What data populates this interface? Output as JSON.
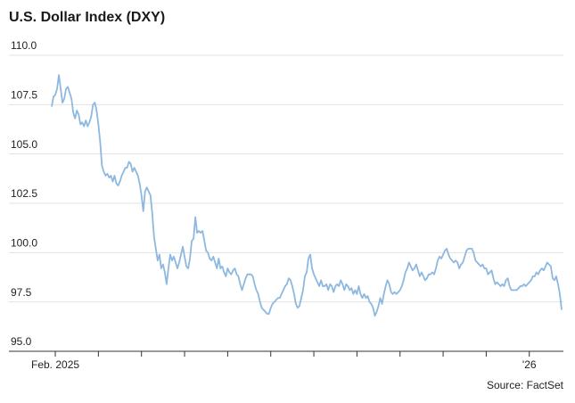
{
  "chart_data": {
    "type": "line",
    "title": "U.S. Dollar Index (DXY)",
    "source": "Source: FactSet",
    "categories": [
      null,
      null,
      "Feb. 2025",
      null,
      null,
      null,
      null,
      null,
      null,
      null,
      null,
      null,
      null,
      null,
      null,
      null,
      null,
      null,
      null,
      null,
      null,
      null,
      null,
      null,
      null,
      null,
      null,
      null,
      null,
      null,
      null,
      null,
      null,
      null,
      null,
      null,
      null,
      null,
      null,
      null,
      null,
      null,
      null,
      null,
      null,
      null,
      null,
      null,
      null,
      null,
      null,
      null,
      null,
      null,
      null,
      null,
      null,
      null,
      null,
      null,
      null,
      null,
      null,
      null,
      null,
      null,
      null,
      null,
      null,
      null,
      null,
      null,
      null,
      null,
      null,
      null,
      null,
      null,
      null,
      null,
      null,
      null,
      null,
      null,
      null,
      null,
      null,
      null,
      null,
      null,
      null,
      null,
      null,
      null,
      null,
      null,
      null,
      null,
      null,
      null,
      null,
      null,
      null,
      null,
      null,
      null,
      null,
      null,
      null,
      null,
      null,
      null,
      null,
      null,
      null,
      null,
      null,
      null,
      null,
      null,
      null,
      null,
      null,
      null,
      null,
      null,
      null,
      null,
      null,
      null,
      null,
      null,
      null,
      null,
      null,
      null,
      null,
      null,
      null,
      null,
      null,
      null,
      null,
      null,
      null,
      null,
      null,
      null,
      null,
      null,
      null,
      null,
      null,
      null,
      null,
      null,
      null,
      null,
      null,
      null,
      null,
      null,
      null,
      null,
      null,
      null,
      null,
      null,
      null,
      null,
      null,
      null,
      null,
      null,
      null,
      null,
      null,
      null,
      null,
      null,
      null,
      null,
      null,
      null,
      null,
      null,
      null,
      null,
      null,
      null,
      null,
      null,
      null,
      null,
      null,
      null,
      null,
      null,
      null,
      null,
      null,
      null,
      null,
      null,
      null,
      null,
      null,
      null,
      null,
      null,
      null,
      null,
      null,
      null,
      null,
      null,
      null,
      null,
      null,
      null,
      null,
      null,
      null,
      null,
      null,
      null,
      null,
      null,
      null,
      null,
      null,
      null,
      null,
      null,
      null,
      null,
      null,
      null,
      null,
      null,
      null,
      null,
      null,
      null,
      null,
      null,
      null,
      null,
      null,
      null,
      null,
      null,
      null,
      null,
      null,
      null,
      null,
      null,
      null,
      null,
      null,
      null,
      null,
      null,
      null,
      null,
      "'26",
      null,
      null,
      null,
      null,
      null,
      null,
      null,
      null,
      null,
      null,
      null,
      null,
      null,
      null,
      null,
      null,
      null,
      null
    ],
    "series": [
      {
        "name": "DXY",
        "color": "#8db8e0",
        "values": [
          107.4,
          107.9,
          108.0,
          108.3,
          109.0,
          108.3,
          107.6,
          107.8,
          108.3,
          108.4,
          108.1,
          107.8,
          107.1,
          106.8,
          107.2,
          107.0,
          106.5,
          106.6,
          106.4,
          106.7,
          106.4,
          106.6,
          106.9,
          107.5,
          107.6,
          107.2,
          106.5,
          105.6,
          104.4,
          104.1,
          103.9,
          104.0,
          103.8,
          103.9,
          103.6,
          103.9,
          103.5,
          103.4,
          103.6,
          103.9,
          104.1,
          104.3,
          104.3,
          104.6,
          104.5,
          104.1,
          104.3,
          104.1,
          103.9,
          103.5,
          102.9,
          102.1,
          103.1,
          103.3,
          103.1,
          102.9,
          102.0,
          100.8,
          100.2,
          99.6,
          99.9,
          99.2,
          99.4,
          99.0,
          98.4,
          99.2,
          99.9,
          99.6,
          99.8,
          99.5,
          99.2,
          99.5,
          99.9,
          100.3,
          99.8,
          99.3,
          99.2,
          99.7,
          100.6,
          100.7,
          101.8,
          101.0,
          101.1,
          101.0,
          101.1,
          100.6,
          100.1,
          100.0,
          99.7,
          99.6,
          99.8,
          99.5,
          99.2,
          99.7,
          99.2,
          99.3,
          99.0,
          98.8,
          99.2,
          99.0,
          98.9,
          99.1,
          99.2,
          98.9,
          98.8,
          98.4,
          98.1,
          98.4,
          98.7,
          98.9,
          98.9,
          98.9,
          98.8,
          98.4,
          98.1,
          97.9,
          97.5,
          97.2,
          97.1,
          97.0,
          96.9,
          96.9,
          97.2,
          97.4,
          97.5,
          97.6,
          97.7,
          97.7,
          97.9,
          98.1,
          98.3,
          98.4,
          98.7,
          98.6,
          98.3,
          97.9,
          97.4,
          97.2,
          97.3,
          97.7,
          98.1,
          98.8,
          99.0,
          99.7,
          99.9,
          99.2,
          98.9,
          98.7,
          98.5,
          98.3,
          98.6,
          98.3,
          98.3,
          98.4,
          98.1,
          98.4,
          98.3,
          98.0,
          98.3,
          98.4,
          98.3,
          98.6,
          98.4,
          98.1,
          98.4,
          98.3,
          98.1,
          98.2,
          97.9,
          98.1,
          97.9,
          98.3,
          97.9,
          97.7,
          97.9,
          97.7,
          97.8,
          97.5,
          97.4,
          97.2,
          96.8,
          97.0,
          97.3,
          97.7,
          97.4,
          97.9,
          98.3,
          98.6,
          98.4,
          98.0,
          97.9,
          98.0,
          97.9,
          98.0,
          98.1,
          98.3,
          98.6,
          99.0,
          99.2,
          99.5,
          99.3,
          99.1,
          99.2,
          99.4,
          99.1,
          98.8,
          99.0,
          98.8,
          98.6,
          98.7,
          98.9,
          98.9,
          99.0,
          98.9,
          99.2,
          99.6,
          99.8,
          99.7,
          99.9,
          100.1,
          100.2,
          99.9,
          99.7,
          99.6,
          99.5,
          99.6,
          99.5,
          99.2,
          99.4,
          99.5,
          99.8,
          100.1,
          100.2,
          100.2,
          100.2,
          100.0,
          99.6,
          99.5,
          99.4,
          99.3,
          99.4,
          99.2,
          99.2,
          98.9,
          99.0,
          99.1,
          98.7,
          98.4,
          98.5,
          98.4,
          98.3,
          98.4,
          98.3,
          98.6,
          98.7,
          98.3,
          98.1,
          98.1,
          98.1,
          98.1,
          98.2,
          98.3,
          98.3,
          98.4,
          98.3,
          98.4,
          98.5,
          98.6,
          98.8,
          98.8,
          99.0,
          98.9,
          99.1,
          99.2,
          99.1,
          99.3,
          99.5,
          99.4,
          99.3,
          98.7,
          98.6,
          98.8,
          98.4,
          97.9,
          97.1
        ]
      }
    ],
    "ylim": [
      95,
      110
    ],
    "yticks": [
      {
        "value": 95,
        "label": "95.0"
      },
      {
        "value": 97.5,
        "label": "97.5"
      },
      {
        "value": 100,
        "label": "100.0"
      },
      {
        "value": 102.5,
        "label": "102.5"
      },
      {
        "value": 105,
        "label": "105.0"
      },
      {
        "value": 107.5,
        "label": "107.5"
      },
      {
        "value": 110,
        "label": "110.0"
      }
    ],
    "grid": true
  }
}
